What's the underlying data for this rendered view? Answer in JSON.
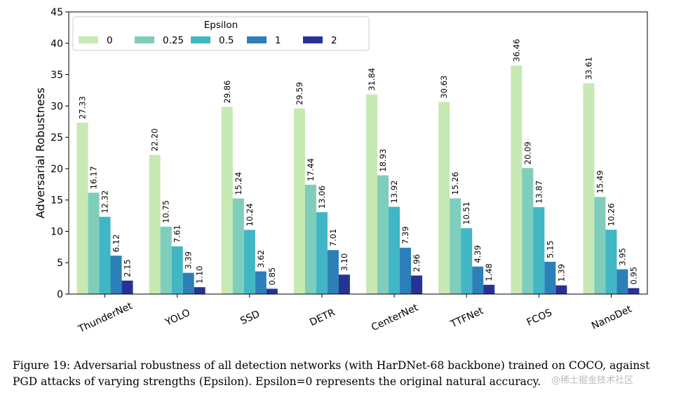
{
  "chart_data": {
    "type": "bar",
    "title": "",
    "xlabel": "",
    "ylabel": "Adversarial Robustness",
    "ylim": [
      0,
      45
    ],
    "yticks": [
      0,
      5,
      10,
      15,
      20,
      25,
      30,
      35,
      40,
      45
    ],
    "grid": false,
    "legend": {
      "title": "Epsilon",
      "placement": "top-left",
      "ncol": 5
    },
    "categories": [
      "ThunderNet",
      "YOLO",
      "SSD",
      "DETR",
      "CenterNet",
      "TTFNet",
      "FCOS",
      "NanoDet"
    ],
    "series": [
      {
        "name": "0",
        "color": "#c7e9b4",
        "values": [
          27.33,
          22.2,
          29.86,
          29.59,
          31.84,
          30.63,
          36.46,
          33.61
        ],
        "labels": [
          "27.33",
          "22.20",
          "29.86",
          "29.59",
          "31.84",
          "30.63",
          "36.46",
          "33.61"
        ]
      },
      {
        "name": "0.25",
        "color": "#7fcdbb",
        "values": [
          16.17,
          10.75,
          15.24,
          17.44,
          18.93,
          15.26,
          20.09,
          15.49
        ],
        "labels": [
          "16.17",
          "10.75",
          "15.24",
          "17.44",
          "18.93",
          "15.26",
          "20.09",
          "15.49"
        ]
      },
      {
        "name": "0.5",
        "color": "#41b6c4",
        "values": [
          12.32,
          7.61,
          10.24,
          13.06,
          13.92,
          10.51,
          13.87,
          10.26
        ],
        "labels": [
          "12.32",
          "7.61",
          "10.24",
          "13.06",
          "13.92",
          "10.51",
          "13.87",
          "10.26"
        ]
      },
      {
        "name": "1",
        "color": "#2c7fb8",
        "values": [
          6.12,
          3.39,
          3.62,
          7.01,
          7.39,
          4.39,
          5.15,
          3.95
        ],
        "labels": [
          "6.12",
          "3.39",
          "3.62",
          "7.01",
          "7.39",
          "4.39",
          "5.15",
          "3.95"
        ]
      },
      {
        "name": "2",
        "color": "#253494",
        "values": [
          2.15,
          1.1,
          0.85,
          3.1,
          2.96,
          1.48,
          1.39,
          0.95
        ],
        "labels": [
          "2.15",
          "1.10",
          "0.85",
          "3.10",
          "2.96",
          "1.48",
          "1.39",
          "0.95"
        ]
      }
    ]
  },
  "caption": "Figure 19: Adversarial robustness of all detection networks (with HarDNet-68 backbone) trained on COCO, against PGD attacks of varying strengths (Epsilon). Epsilon=0 represents the original natural accuracy.",
  "watermark": "@稀土掘金技术社区"
}
